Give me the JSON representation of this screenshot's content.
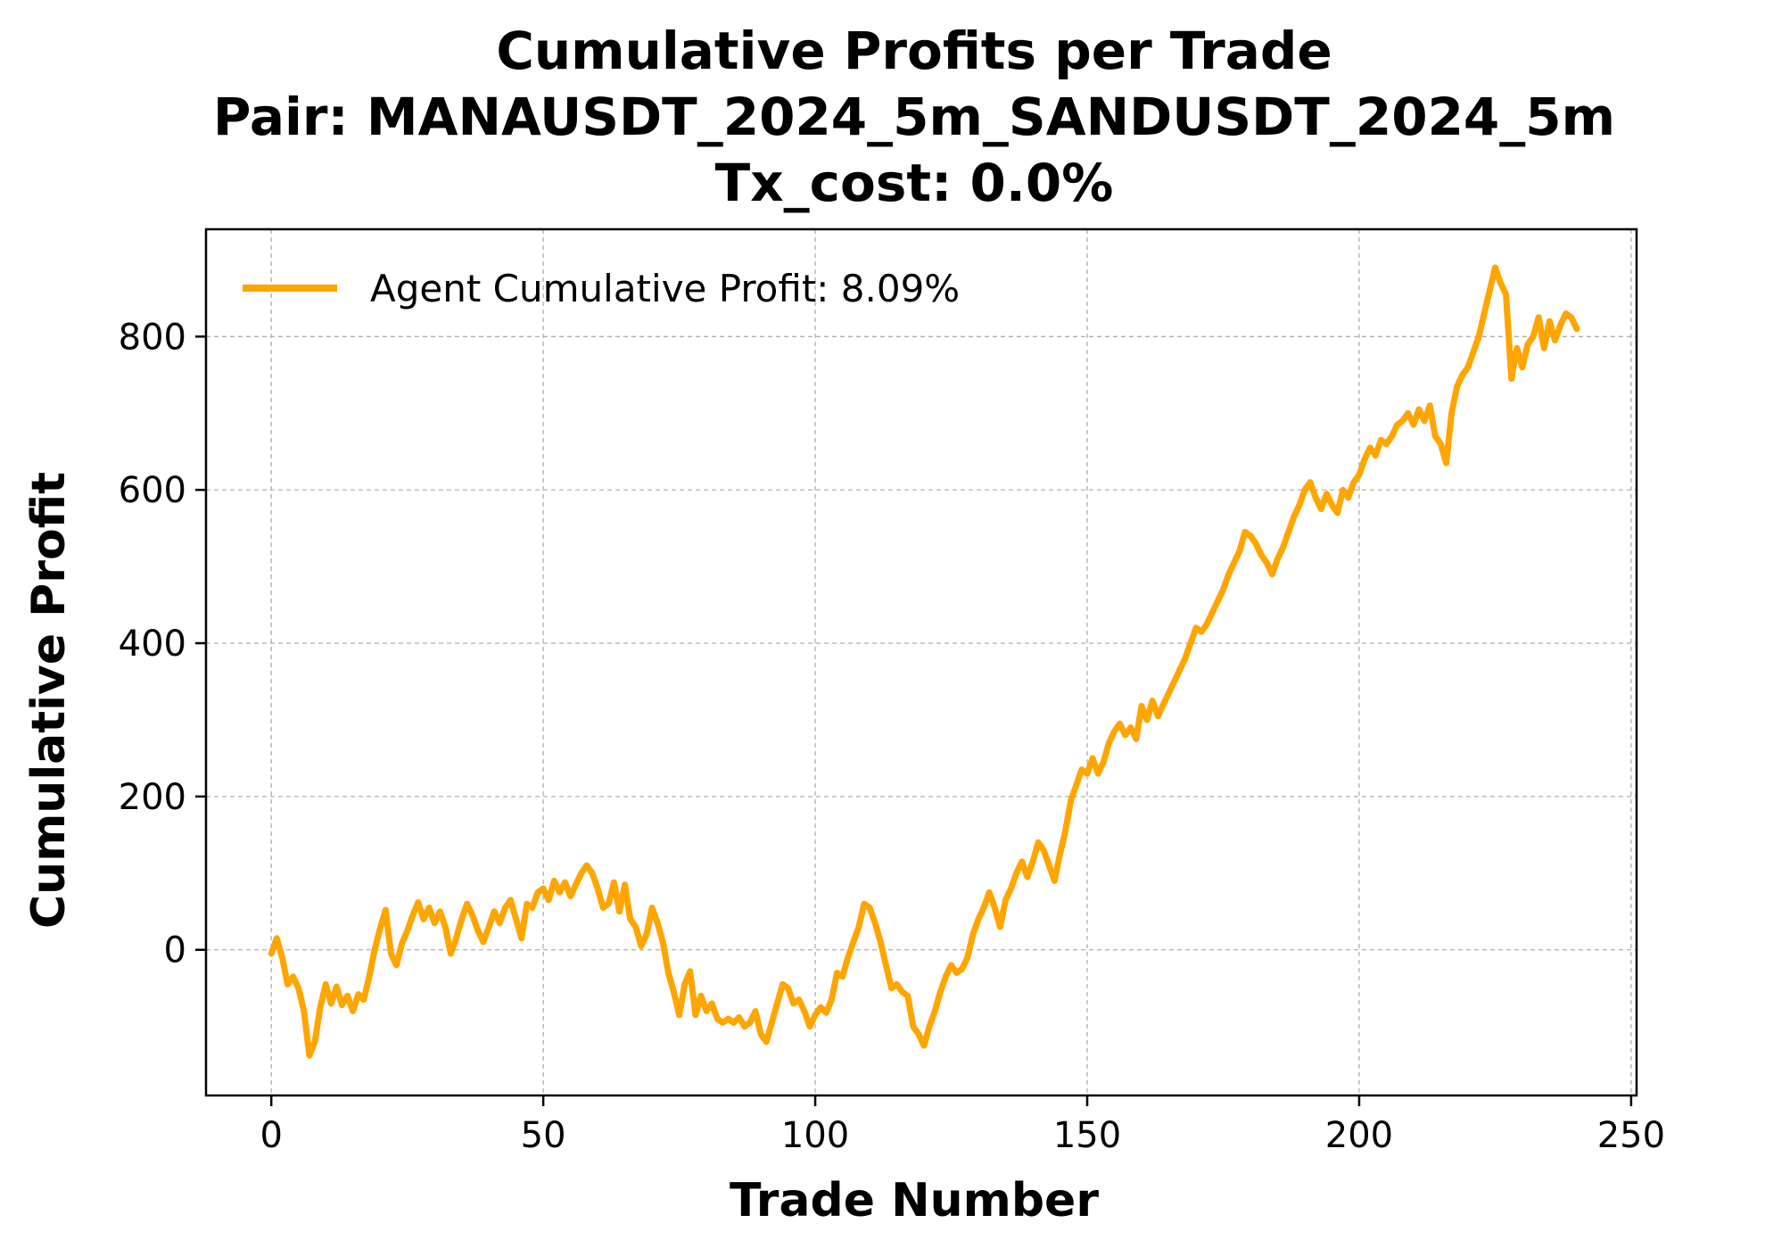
{
  "chart_data": {
    "type": "line",
    "title_lines": [
      "Cumulative Profits per Trade",
      "Pair: MANAUSDT_2024_5m_SANDUSDT_2024_5m",
      "Tx_cost: 0.0%"
    ],
    "xlabel": "Trade Number",
    "ylabel": "Cumulative Profit",
    "xlim": [
      -12,
      251
    ],
    "ylim": [
      -190,
      940
    ],
    "xticks": [
      0,
      50,
      100,
      150,
      200,
      250
    ],
    "yticks": [
      0,
      200,
      400,
      600,
      800
    ],
    "xtick_labels": [
      "0",
      "50",
      "100",
      "150",
      "200",
      "250"
    ],
    "ytick_labels": [
      "0",
      "200",
      "400",
      "600",
      "800"
    ],
    "grid": true,
    "legend_position": "upper-left",
    "series": [
      {
        "name": "Agent Cumulative Profit: 8.09%",
        "color": "#FFA500",
        "x": [
          0,
          1,
          2,
          3,
          4,
          5,
          6,
          7,
          8,
          9,
          10,
          11,
          12,
          13,
          14,
          15,
          16,
          17,
          18,
          19,
          20,
          21,
          22,
          23,
          24,
          25,
          26,
          27,
          28,
          29,
          30,
          31,
          32,
          33,
          34,
          35,
          36,
          37,
          38,
          39,
          40,
          41,
          42,
          43,
          44,
          45,
          46,
          47,
          48,
          49,
          50,
          51,
          52,
          53,
          54,
          55,
          56,
          57,
          58,
          59,
          60,
          61,
          62,
          63,
          64,
          65,
          66,
          67,
          68,
          69,
          70,
          71,
          72,
          73,
          74,
          75,
          76,
          77,
          78,
          79,
          80,
          81,
          82,
          83,
          84,
          85,
          86,
          87,
          88,
          89,
          90,
          91,
          92,
          93,
          94,
          95,
          96,
          97,
          98,
          99,
          100,
          101,
          102,
          103,
          104,
          105,
          106,
          107,
          108,
          109,
          110,
          111,
          112,
          113,
          114,
          115,
          116,
          117,
          118,
          119,
          120,
          121,
          122,
          123,
          124,
          125,
          126,
          127,
          128,
          129,
          130,
          131,
          132,
          133,
          134,
          135,
          136,
          137,
          138,
          139,
          140,
          141,
          142,
          143,
          144,
          145,
          146,
          147,
          148,
          149,
          150,
          151,
          152,
          153,
          154,
          155,
          156,
          157,
          158,
          159,
          160,
          161,
          162,
          163,
          164,
          165,
          166,
          167,
          168,
          169,
          170,
          171,
          172,
          173,
          174,
          175,
          176,
          177,
          178,
          179,
          180,
          181,
          182,
          183,
          184,
          185,
          186,
          187,
          188,
          189,
          190,
          191,
          192,
          193,
          194,
          195,
          196,
          197,
          198,
          199,
          200,
          201,
          202,
          203,
          204,
          205,
          206,
          207,
          208,
          209,
          210,
          211,
          212,
          213,
          214,
          215,
          216,
          217,
          218,
          219,
          220,
          221,
          222,
          223,
          224,
          225,
          226,
          227,
          228,
          229,
          230,
          231,
          232,
          233,
          234,
          235,
          236,
          237,
          238,
          239,
          240
        ],
        "y": [
          -5,
          15,
          -10,
          -45,
          -35,
          -50,
          -80,
          -138,
          -120,
          -75,
          -45,
          -70,
          -48,
          -72,
          -60,
          -80,
          -58,
          -65,
          -35,
          0,
          28,
          52,
          -5,
          -20,
          8,
          25,
          45,
          62,
          40,
          55,
          35,
          50,
          30,
          -5,
          15,
          40,
          60,
          45,
          25,
          10,
          30,
          50,
          35,
          55,
          65,
          40,
          15,
          60,
          55,
          75,
          80,
          65,
          90,
          75,
          88,
          70,
          85,
          100,
          110,
          100,
          80,
          55,
          60,
          88,
          50,
          85,
          40,
          30,
          5,
          20,
          55,
          35,
          10,
          -30,
          -55,
          -85,
          -45,
          -28,
          -85,
          -60,
          -80,
          -70,
          -90,
          -95,
          -90,
          -95,
          -88,
          -100,
          -95,
          -80,
          -110,
          -120,
          -95,
          -70,
          -45,
          -50,
          -70,
          -65,
          -80,
          -100,
          -85,
          -75,
          -82,
          -65,
          -30,
          -35,
          -10,
          10,
          30,
          60,
          55,
          35,
          10,
          -20,
          -50,
          -45,
          -55,
          -60,
          -100,
          -110,
          -125,
          -100,
          -80,
          -55,
          -35,
          -20,
          -30,
          -25,
          -10,
          20,
          40,
          55,
          75,
          55,
          30,
          65,
          80,
          100,
          115,
          95,
          115,
          140,
          130,
          110,
          90,
          125,
          155,
          195,
          215,
          235,
          230,
          250,
          230,
          245,
          270,
          285,
          295,
          280,
          290,
          275,
          318,
          300,
          325,
          305,
          320,
          335,
          350,
          365,
          380,
          400,
          420,
          415,
          425,
          440,
          455,
          470,
          490,
          505,
          520,
          545,
          540,
          530,
          515,
          505,
          490,
          510,
          525,
          545,
          565,
          580,
          600,
          610,
          590,
          575,
          595,
          580,
          570,
          600,
          590,
          610,
          620,
          640,
          655,
          645,
          665,
          660,
          670,
          685,
          690,
          700,
          685,
          705,
          690,
          710,
          670,
          660,
          635,
          700,
          735,
          750,
          760,
          780,
          800,
          830,
          860,
          890,
          870,
          855,
          745,
          785,
          760,
          790,
          800,
          825,
          785,
          820,
          795,
          815,
          830,
          825,
          810
        ]
      }
    ]
  }
}
